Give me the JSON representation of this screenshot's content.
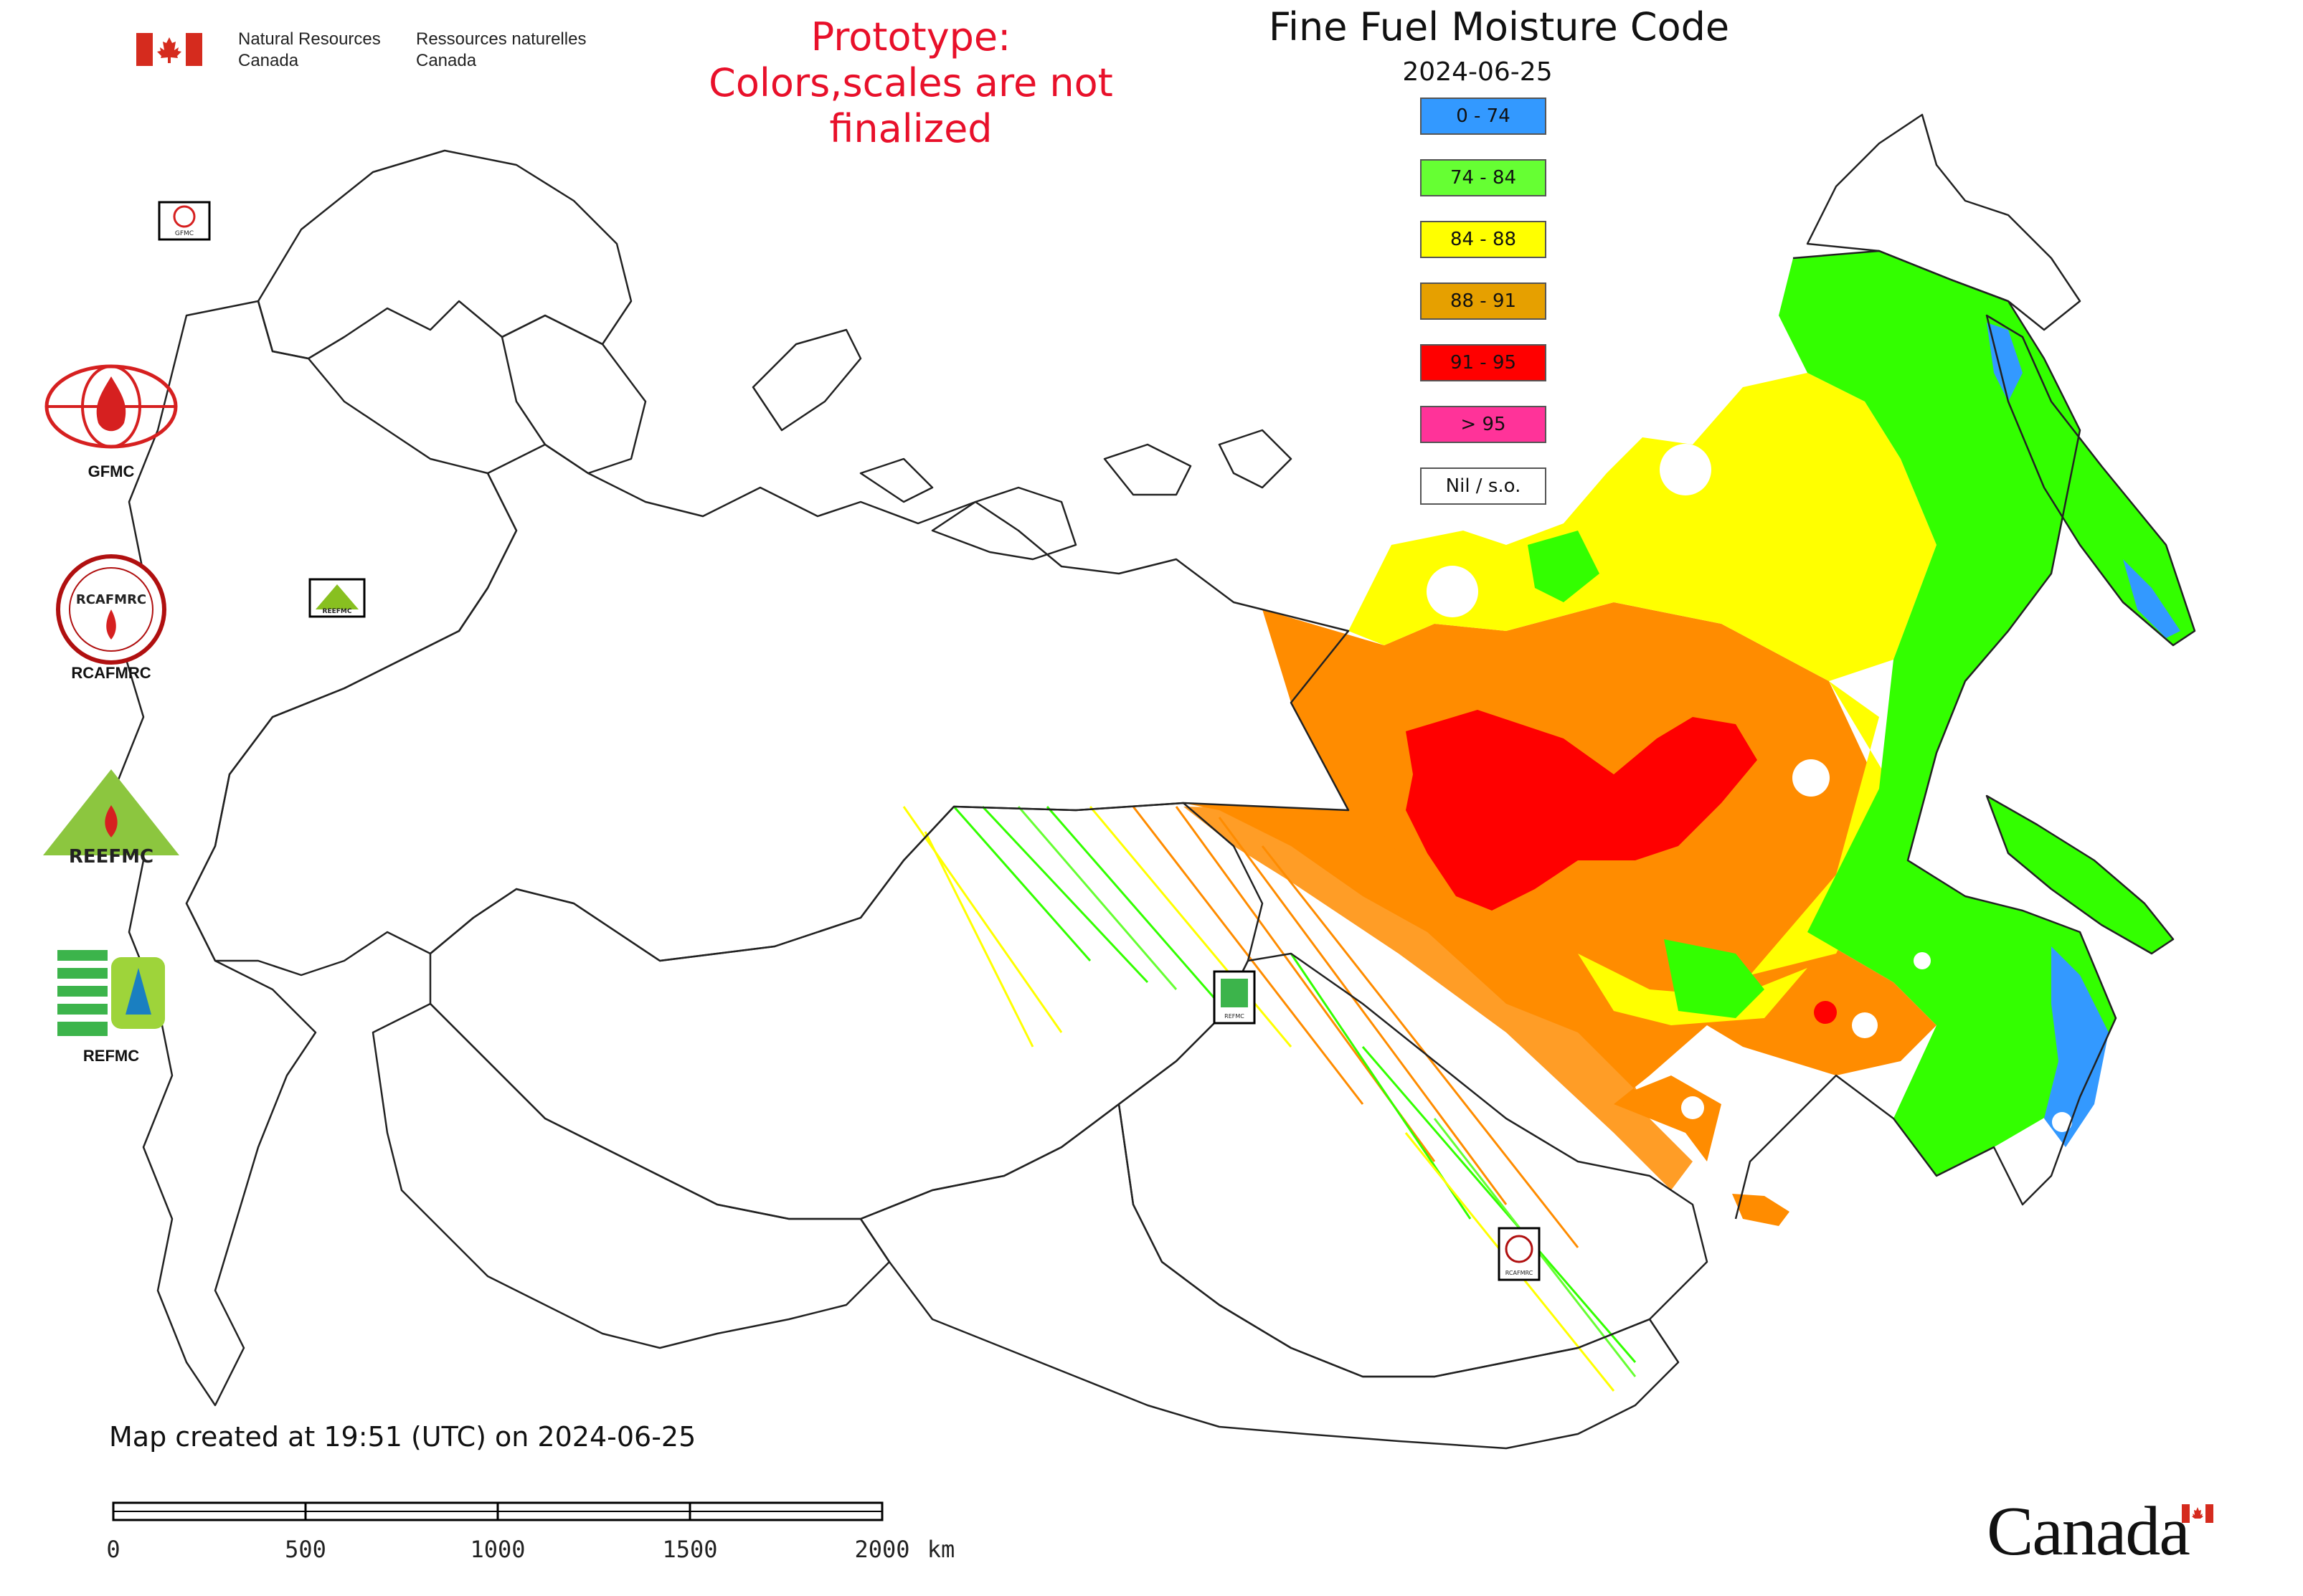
{
  "header": {
    "dept_en_line1": "Natural Resources",
    "dept_en_line2": "Canada",
    "dept_fr_line1": "Ressources naturelles",
    "dept_fr_line2": "Canada"
  },
  "prototype_notice": {
    "line1": "Prototype:",
    "line2": "Colors,scales are not finalized"
  },
  "map": {
    "title": "Fine Fuel Moisture Code",
    "date": "2024-06-25",
    "created_note": "Map created at 19:51 (UTC) on 2024-06-25"
  },
  "legend": [
    {
      "label": "0 - 74",
      "color": "#3399ff"
    },
    {
      "label": "74 - 84",
      "color": "#66ff33"
    },
    {
      "label": "84 - 88",
      "color": "#ffff00"
    },
    {
      "label": "88 - 91",
      "color": "#e6a000"
    },
    {
      "label": "91 - 95",
      "color": "#ff0000"
    },
    {
      "label": "> 95",
      "color": "#ff3399"
    },
    {
      "label": "Nil / s.o.",
      "color": "#ffffff"
    }
  ],
  "side_logos": [
    {
      "name": "GFMC",
      "label": "GFMC"
    },
    {
      "name": "RCAFMRC",
      "label": "RCAFMRC",
      "inner_text": "RCAFMRC"
    },
    {
      "name": "REEFMC",
      "label": "REEFMC",
      "inner_text": "REEFMC"
    },
    {
      "name": "REFMC",
      "label": "REFMC"
    }
  ],
  "map_markers": [
    {
      "name": "GFMC",
      "label": "GFMC"
    },
    {
      "name": "REEFMC",
      "label": "REEFMC"
    },
    {
      "name": "REFMC",
      "label": "REFMC"
    },
    {
      "name": "RCAFMRC",
      "label": "RCAFMRC"
    }
  ],
  "scale_bar": {
    "ticks": [
      "0",
      "500",
      "1000",
      "1500",
      "2000"
    ],
    "unit": "km"
  },
  "wordmark": "Canada",
  "colors": {
    "prototype_red": "#e8102a",
    "canada_red": "#d52b1e"
  }
}
